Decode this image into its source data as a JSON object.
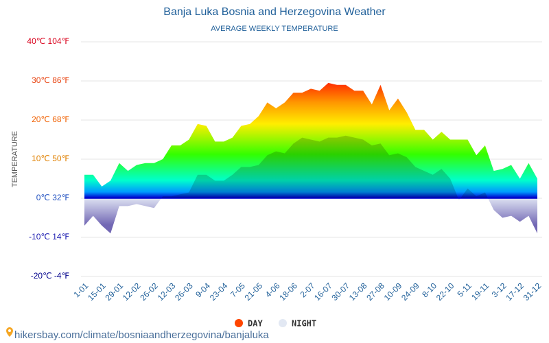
{
  "chart_data": {
    "type": "area",
    "title": "Banja Luka Bosnia and Herzegovina Weather",
    "subtitle": "AVERAGE WEEKLY TEMPERATURE",
    "y_label": "TEMPERATURE",
    "source": "hikersbay.com/climate/bosniaandherzegovina/banjaluka",
    "categories": [
      "1-01",
      null,
      "15-01",
      null,
      "29-01",
      null,
      "12-02",
      null,
      "26-02",
      null,
      "12-03",
      null,
      "26-03",
      null,
      "9-04",
      null,
      "23-04",
      null,
      "7-05",
      null,
      "21-05",
      null,
      "4-06",
      null,
      "18-06",
      null,
      "2-07",
      null,
      "16-07",
      null,
      "30-07",
      null,
      "13-08",
      null,
      "27-08",
      null,
      "10-09",
      null,
      "24-09",
      null,
      "8-10",
      null,
      "22-10",
      null,
      "5-11",
      null,
      "19-11",
      null,
      "3-12",
      null,
      "17-12",
      null,
      "31-12"
    ],
    "series": [
      {
        "name": "DAY",
        "color": "#ff4500",
        "values": [
          6,
          6,
          3,
          4.5,
          9,
          7,
          8.5,
          9,
          9,
          10,
          13.5,
          13.5,
          15,
          19,
          18.5,
          14.5,
          14.5,
          15.5,
          18.5,
          19,
          21,
          24.5,
          23,
          24.5,
          27,
          27,
          28,
          27.5,
          29.5,
          29,
          29,
          27.5,
          27.5,
          24,
          29,
          22.5,
          25.5,
          22,
          17.5,
          17.5,
          15,
          17,
          15,
          15,
          15,
          11,
          13.5,
          7,
          7.5,
          8.5,
          5,
          9,
          5
        ]
      },
      {
        "name": "NIGHT",
        "color": "#e2e8f3",
        "values": [
          -7,
          -4.5,
          -7,
          -9,
          -2,
          -2,
          -1.5,
          -2,
          -2.5,
          0.5,
          0.5,
          1,
          1.5,
          6,
          6,
          4.5,
          4.5,
          6,
          8,
          8,
          8.5,
          11,
          12,
          11.5,
          14,
          15.5,
          15,
          14.5,
          15.5,
          15.5,
          16,
          15.5,
          15,
          13.5,
          14,
          11,
          11.5,
          10.5,
          8,
          7,
          6,
          7.5,
          5,
          -0.5,
          2.5,
          0.5,
          1.5,
          -3,
          -5,
          -4.5,
          -6,
          -4.5,
          -9
        ]
      }
    ],
    "ylim": [
      -20,
      40
    ],
    "yticks": [
      {
        "value": -20,
        "label": "-20℃ -4℉"
      },
      {
        "value": -10,
        "label": "-10℃ 14℉"
      },
      {
        "value": 0,
        "label": "0℃ 32℉"
      },
      {
        "value": 10,
        "label": "10℃ 50℉"
      },
      {
        "value": 20,
        "label": "20℃ 68℉"
      },
      {
        "value": 30,
        "label": "30℃ 86℉"
      },
      {
        "value": 40,
        "label": "40℃ 104℉"
      }
    ],
    "ytick_colors": [
      "#00008b",
      "#1a1ab0",
      "#2050c0",
      "#e08000",
      "#f06000",
      "#e8400c",
      "#d9001b"
    ],
    "grid": true
  }
}
